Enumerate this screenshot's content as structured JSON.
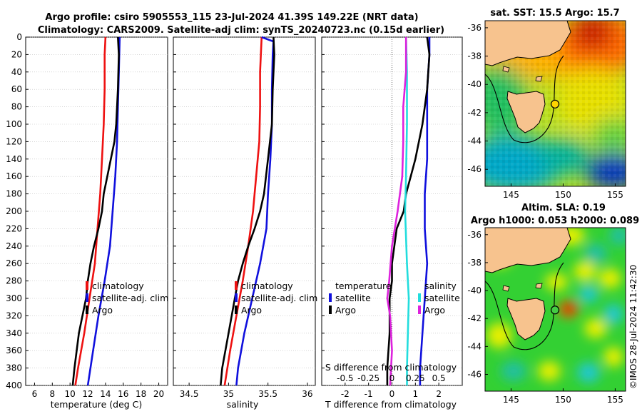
{
  "figure": {
    "title_line1": "Argo profile: csiro 5905553_115 23-Jul-2024 41.39S 149.22E (NRT data)",
    "title_line2": "Climatology: CARS2009. Satellite-adj clim: synTS_20240723.nc (0.15d earlier)",
    "stamp": "©IMOS 28-Jul-2024 11:42:30"
  },
  "colors": {
    "climatology": "#ee1111",
    "satellite": "#1010dd",
    "argo": "#000000",
    "satellite_salinity": "#22dddd",
    "argo_salinity": "#dd22dd",
    "land": "#f7c38e"
  },
  "chart_data": [
    {
      "id": "temperature-profile",
      "type": "line",
      "xlabel": "temperature (deg C)",
      "xlim": [
        5,
        21
      ],
      "xticks": [
        "6",
        "8",
        "10",
        "12",
        "14",
        "16",
        "18",
        "20"
      ],
      "xtick_values": [
        6,
        8,
        10,
        12,
        14,
        16,
        18,
        20
      ],
      "ylim": [
        400,
        0
      ],
      "yticks": [
        "0",
        "20",
        "40",
        "60",
        "80",
        "100",
        "120",
        "140",
        "160",
        "180",
        "200",
        "220",
        "240",
        "260",
        "280",
        "300",
        "320",
        "340",
        "360",
        "380",
        "400"
      ],
      "ytick_values": [
        0,
        20,
        40,
        60,
        80,
        100,
        120,
        140,
        160,
        180,
        200,
        220,
        240,
        260,
        280,
        300,
        320,
        340,
        360,
        380,
        400
      ],
      "legend": [
        "climatology",
        "satellite-adj. clim",
        "Argo"
      ],
      "series": [
        {
          "name": "climatology",
          "color_key": "climatology",
          "depth": [
            0,
            20,
            60,
            100,
            140,
            180,
            220,
            260,
            300,
            340,
            380,
            400
          ],
          "values": [
            14.0,
            13.9,
            13.9,
            13.8,
            13.6,
            13.4,
            13.1,
            12.8,
            12.2,
            11.6,
            10.9,
            10.6
          ]
        },
        {
          "name": "satellite-adj. clim",
          "color_key": "satellite",
          "depth": [
            0,
            40,
            80,
            120,
            160,
            200,
            240,
            280,
            320,
            360,
            400
          ],
          "values": [
            15.6,
            15.5,
            15.4,
            15.3,
            15.1,
            14.8,
            14.5,
            13.9,
            13.2,
            12.6,
            12.0
          ]
        },
        {
          "name": "Argo",
          "color_key": "argo",
          "depth": [
            0,
            20,
            60,
            100,
            120,
            140,
            160,
            180,
            200,
            220,
            240,
            260,
            280,
            300,
            340,
            380,
            400
          ],
          "values": [
            15.4,
            15.5,
            15.4,
            15.2,
            15.0,
            14.6,
            14.2,
            13.8,
            13.6,
            13.2,
            12.7,
            12.3,
            12.0,
            11.8,
            11.0,
            10.5,
            10.3
          ]
        }
      ]
    },
    {
      "id": "salinity-profile",
      "type": "line",
      "xlabel": "salinity",
      "xlim": [
        34.3,
        36.1
      ],
      "xticks": [
        "34.5",
        "35",
        "35.5",
        "36"
      ],
      "xtick_values": [
        34.5,
        35,
        35.5,
        36
      ],
      "ylim": [
        400,
        0
      ],
      "legend": [
        "climatology",
        "satellite-adj. clim",
        "Argo"
      ],
      "series": [
        {
          "name": "climatology",
          "color_key": "climatology",
          "depth": [
            0,
            40,
            80,
            120,
            160,
            200,
            240,
            280,
            320,
            360,
            400
          ],
          "values": [
            35.42,
            35.4,
            35.4,
            35.39,
            35.35,
            35.31,
            35.25,
            35.18,
            35.1,
            35.02,
            34.95
          ]
        },
        {
          "name": "satellite-adj. clim",
          "color_key": "satellite",
          "depth": [
            0,
            5,
            20,
            60,
            100,
            140,
            180,
            220,
            260,
            300,
            340,
            380,
            400
          ],
          "values": [
            35.42,
            35.57,
            35.56,
            35.55,
            35.55,
            35.53,
            35.5,
            35.48,
            35.4,
            35.3,
            35.2,
            35.12,
            35.1
          ]
        },
        {
          "name": "Argo",
          "color_key": "argo",
          "depth": [
            0,
            20,
            60,
            100,
            140,
            180,
            200,
            220,
            240,
            260,
            280,
            300,
            340,
            380,
            400
          ],
          "values": [
            35.57,
            35.58,
            35.56,
            35.55,
            35.5,
            35.45,
            35.4,
            35.33,
            35.25,
            35.18,
            35.12,
            35.08,
            35.0,
            34.92,
            34.9
          ]
        }
      ]
    },
    {
      "id": "difference-profile",
      "type": "line",
      "xlabel": "T difference from climatology",
      "xlim": [
        -3,
        3
      ],
      "xticks": [
        "-2",
        "-1",
        "0",
        "1",
        "2"
      ],
      "xtick_values": [
        -2,
        -1,
        0,
        1,
        2
      ],
      "top_label": "S difference from climatology",
      "top_xticks": [
        "-0.5",
        "-0.25",
        "0",
        "0.25",
        "0.5"
      ],
      "top_xtick_values": [
        -0.5,
        -0.25,
        0,
        0.25,
        0.5
      ],
      "ylim": [
        400,
        0
      ],
      "legend_left_title": "temperature",
      "legend_left": [
        "satellite",
        "Argo"
      ],
      "legend_right_title": "salinity",
      "legend_right": [
        "satellite",
        "Argo"
      ],
      "series": [
        {
          "name": "temperature satellite",
          "color_key": "satellite",
          "depth": [
            0,
            20,
            60,
            100,
            140,
            180,
            220,
            260,
            300,
            340,
            380,
            400
          ],
          "values": [
            1.6,
            1.6,
            1.5,
            1.5,
            1.5,
            1.4,
            1.4,
            1.5,
            1.4,
            1.3,
            1.2,
            1.2
          ]
        },
        {
          "name": "temperature Argo",
          "color_key": "argo",
          "depth": [
            0,
            20,
            60,
            100,
            140,
            160,
            180,
            200,
            220,
            240,
            260,
            280,
            300,
            340,
            380,
            400
          ],
          "values": [
            1.5,
            1.6,
            1.5,
            1.3,
            1.0,
            0.8,
            0.6,
            0.5,
            0.2,
            0.1,
            0.0,
            0.0,
            -0.1,
            -0.1,
            -0.2,
            -0.2
          ]
        },
        {
          "name": "salinity satellite",
          "color_key": "satellite_salinity",
          "depth": [
            0,
            40,
            100,
            160,
            200,
            260,
            300,
            340,
            380,
            400
          ],
          "values": [
            0.15,
            0.16,
            0.16,
            0.15,
            0.14,
            0.16,
            0.18,
            0.17,
            0.16,
            0.16
          ]
        },
        {
          "name": "salinity Argo",
          "color_key": "argo_salinity",
          "depth": [
            0,
            40,
            80,
            120,
            160,
            200,
            240,
            280,
            300,
            320,
            360,
            400
          ],
          "values": [
            0.15,
            0.15,
            0.12,
            0.12,
            0.11,
            0.06,
            0.0,
            -0.03,
            -0.05,
            -0.02,
            0.0,
            -0.02
          ]
        }
      ]
    },
    {
      "id": "sst-map",
      "type": "heatmap",
      "title": "sat. SST: 15.5 Argo: 15.7",
      "xticks": [
        "145",
        "150",
        "155"
      ],
      "xtick_values": [
        145,
        150,
        155
      ],
      "yticks": [
        "-36",
        "-38",
        "-40",
        "-42",
        "-44",
        "-46"
      ],
      "ytick_values": [
        -36,
        -38,
        -40,
        -42,
        -44,
        -46
      ],
      "xlim": [
        142.5,
        156
      ],
      "ylim": [
        -47.2,
        -35.5
      ],
      "marker": {
        "lon": 149.22,
        "lat": -41.39,
        "color": "#ffd400"
      }
    },
    {
      "id": "sla-map",
      "type": "heatmap",
      "title_line1": "Altim. SLA: 0.19",
      "title_line2": "Argo h1000: 0.053 h2000: 0.089",
      "xticks": [
        "145",
        "150",
        "155"
      ],
      "xtick_values": [
        145,
        150,
        155
      ],
      "yticks": [
        "-36",
        "-38",
        "-40",
        "-42",
        "-44",
        "-46"
      ],
      "ytick_values": [
        -36,
        -38,
        -40,
        -42,
        -44,
        -46
      ],
      "xlim": [
        142.5,
        156
      ],
      "ylim": [
        -47.2,
        -35.5
      ],
      "marker": {
        "lon": 149.22,
        "lat": -41.39,
        "color": "#44cc44"
      }
    }
  ]
}
